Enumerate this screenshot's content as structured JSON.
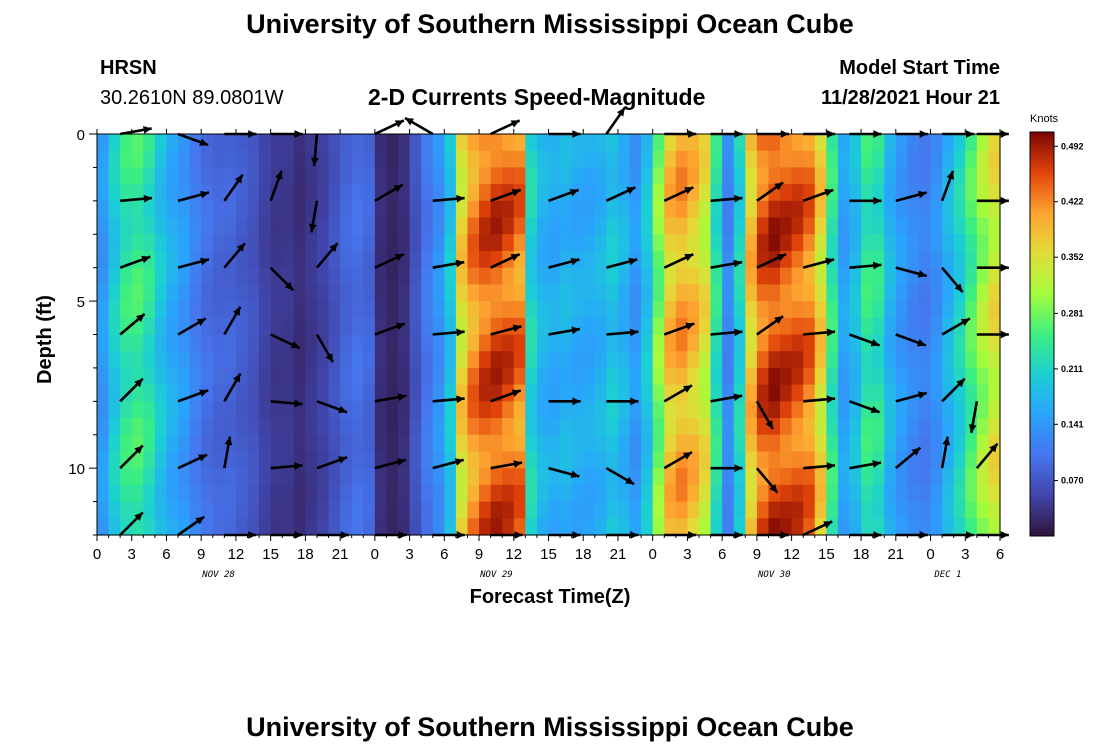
{
  "header": {
    "title": "University of Southern Mississippi Ocean Cube",
    "station": "HRSN",
    "coords": "30.2610N  89.0801W",
    "subtitle": "2-D Currents Speed-Magnitude",
    "model_label": "Model Start Time",
    "model_time": "11/28/2021 Hour 21"
  },
  "footer": {
    "title": "University of Southern Mississippi Ocean Cube"
  },
  "chart_data": {
    "type": "heatmap",
    "title": "2-D Currents Speed-Magnitude",
    "xlabel": "Forecast Time(Z)",
    "ylabel": "Depth (ft)",
    "x_range_hours": [
      0,
      78
    ],
    "y_range_ft": [
      0,
      12
    ],
    "x_ticks": [
      "0",
      "3",
      "6",
      "9",
      "12",
      "15",
      "18",
      "21",
      "0",
      "3",
      "6",
      "9",
      "12",
      "15",
      "18",
      "21",
      "0",
      "3",
      "6",
      "9",
      "12",
      "15",
      "18",
      "21",
      "0",
      "3",
      "6"
    ],
    "y_ticks": [
      "0",
      "5",
      "10"
    ],
    "day_labels": [
      {
        "label": "NOV 28",
        "hour": 10.5
      },
      {
        "label": "NOV 29",
        "hour": 34.5
      },
      {
        "label": "NOV 30",
        "hour": 58.5
      },
      {
        "label": "DEC 1",
        "hour": 73.5
      }
    ],
    "colorbar": {
      "unit": "Knots",
      "min": 0.0,
      "max": 0.51,
      "ticks": [
        "0.492",
        "0.422",
        "0.352",
        "0.281",
        "0.211",
        "0.141",
        "0.070"
      ],
      "tick_values": [
        0.492,
        0.422,
        0.352,
        0.281,
        0.211,
        0.141,
        0.07
      ]
    },
    "speed_profile_by_hour": {
      "hours": [
        0,
        1,
        2,
        3,
        4,
        5,
        6,
        7,
        8,
        9,
        10,
        11,
        12,
        13,
        14,
        15,
        16,
        17,
        18,
        19,
        20,
        21,
        22,
        23,
        24,
        25,
        26,
        27,
        28,
        29,
        30,
        31,
        32,
        33,
        34,
        35,
        36,
        37,
        38,
        39,
        40,
        41,
        42,
        43,
        44,
        45,
        46,
        47,
        48,
        49,
        50,
        51,
        52,
        53,
        54,
        55,
        56,
        57,
        58,
        59,
        60,
        61,
        62,
        63,
        64,
        65,
        66,
        67,
        68,
        69,
        70,
        71,
        72,
        73,
        74,
        75,
        76,
        77
      ],
      "speeds": [
        0.15,
        0.21,
        0.25,
        0.26,
        0.24,
        0.2,
        0.17,
        0.15,
        0.12,
        0.1,
        0.09,
        0.09,
        0.08,
        0.07,
        0.05,
        0.04,
        0.04,
        0.03,
        0.04,
        0.05,
        0.07,
        0.09,
        0.1,
        0.09,
        0.03,
        0.02,
        0.03,
        0.07,
        0.11,
        0.14,
        0.2,
        0.38,
        0.44,
        0.47,
        0.48,
        0.47,
        0.45,
        0.22,
        0.18,
        0.17,
        0.18,
        0.17,
        0.17,
        0.18,
        0.2,
        0.18,
        0.15,
        0.2,
        0.3,
        0.4,
        0.42,
        0.4,
        0.36,
        0.24,
        0.13,
        0.22,
        0.4,
        0.47,
        0.49,
        0.48,
        0.47,
        0.45,
        0.38,
        0.25,
        0.16,
        0.19,
        0.25,
        0.24,
        0.18,
        0.15,
        0.13,
        0.12,
        0.14,
        0.18,
        0.22,
        0.27,
        0.32,
        0.36
      ]
    },
    "vectors": {
      "depths_ft": [
        0,
        2,
        4,
        6,
        8,
        10,
        12
      ],
      "hours": [
        2,
        7,
        11,
        15,
        19,
        24,
        29,
        34,
        39,
        44,
        49,
        53,
        57,
        61,
        65,
        69,
        73,
        76
      ],
      "angles_deg": [
        [
          -10,
          20,
          0,
          0,
          95,
          -25,
          -150,
          -25,
          0,
          -55,
          0,
          0,
          0,
          0,
          0,
          0,
          0,
          0
        ],
        [
          -5,
          -15,
          -55,
          -70,
          100,
          -30,
          -5,
          -20,
          -20,
          -25,
          -25,
          -5,
          -35,
          -20,
          0,
          -15,
          -70,
          0
        ],
        [
          -20,
          -15,
          -50,
          45,
          -50,
          -25,
          -10,
          -25,
          -15,
          -15,
          -25,
          -10,
          -25,
          -15,
          -5,
          15,
          50,
          0
        ],
        [
          -40,
          -30,
          -60,
          25,
          60,
          -20,
          -5,
          -15,
          -10,
          -5,
          -20,
          -5,
          -35,
          -5,
          20,
          20,
          -30,
          0
        ],
        [
          -45,
          -20,
          -60,
          5,
          20,
          -10,
          -5,
          -20,
          0,
          0,
          -30,
          -10,
          60,
          -5,
          20,
          -15,
          -45,
          100
        ],
        [
          -45,
          -25,
          -80,
          -5,
          -20,
          -15,
          -15,
          -10,
          15,
          30,
          -30,
          0,
          50,
          -5,
          -10,
          -40,
          -80,
          -50
        ],
        [
          -45,
          -35,
          0,
          0,
          0,
          0,
          0,
          0,
          0,
          0,
          0,
          0,
          0,
          -25,
          0,
          0,
          0,
          0
        ]
      ]
    }
  }
}
